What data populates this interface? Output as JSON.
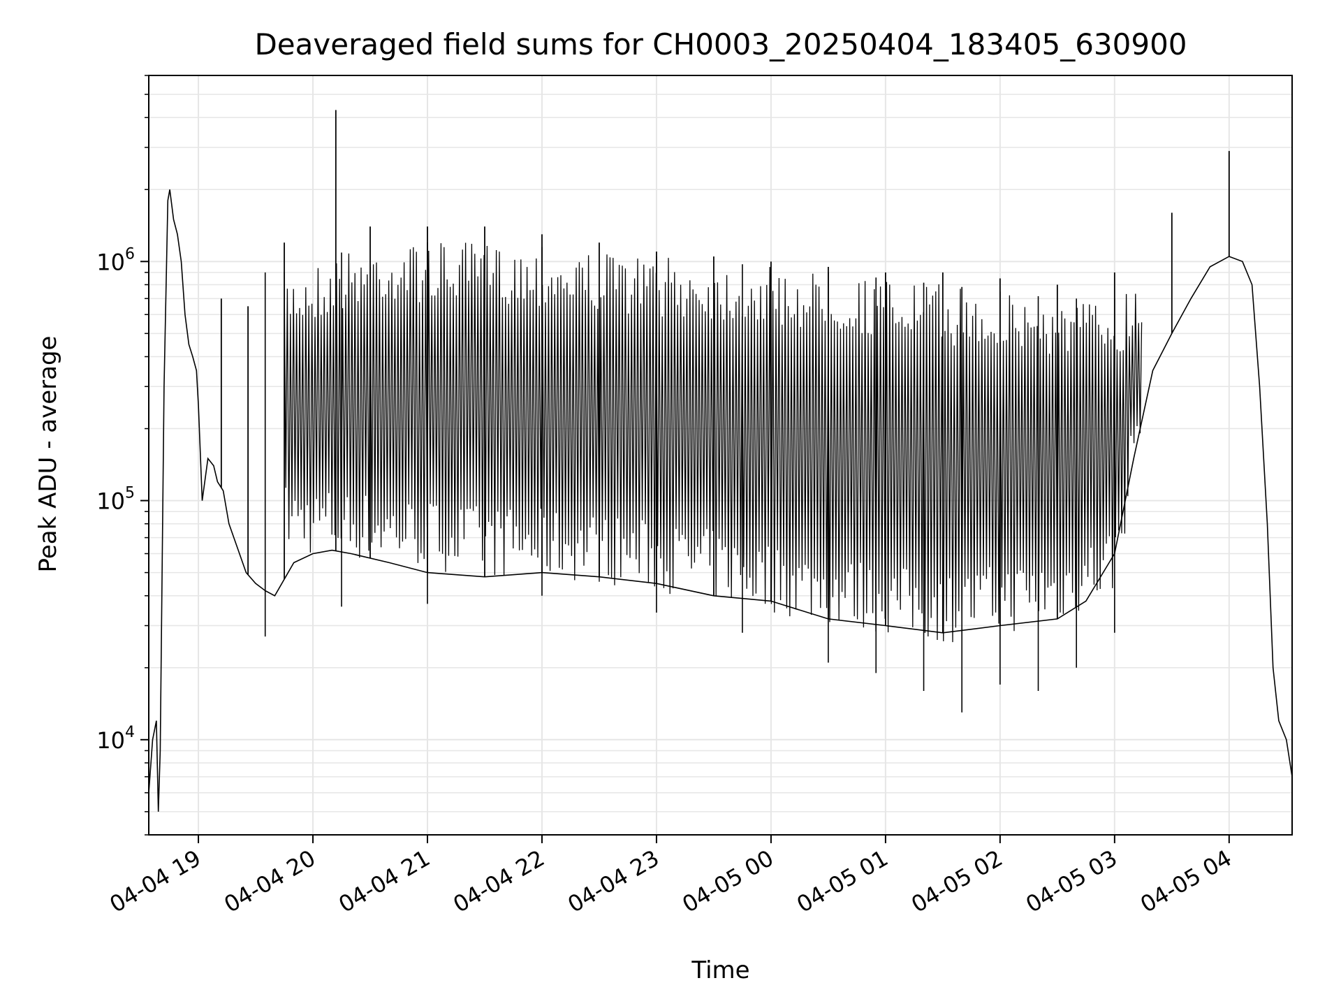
{
  "chart_data": {
    "type": "line",
    "title": "Deaveraged field sums for CH0003_20250404_183405_630900",
    "xlabel": "Time",
    "ylabel": "Peak ADU - average",
    "y_scale": "log",
    "ylim": [
      4000,
      6000000
    ],
    "xlim": [
      "04-04 18:34",
      "04-05 04:33"
    ],
    "grid": true,
    "line_color": "#000000",
    "grid_color": "#e6e6e6",
    "x_ticks": [
      {
        "label": "04-04 19",
        "time": "04-04 19:00"
      },
      {
        "label": "04-04 20",
        "time": "04-04 20:00"
      },
      {
        "label": "04-04 21",
        "time": "04-04 21:00"
      },
      {
        "label": "04-04 22",
        "time": "04-04 22:00"
      },
      {
        "label": "04-04 23",
        "time": "04-04 23:00"
      },
      {
        "label": "04-05 00",
        "time": "04-05 00:00"
      },
      {
        "label": "04-05 01",
        "time": "04-05 01:00"
      },
      {
        "label": "04-05 02",
        "time": "04-05 02:00"
      },
      {
        "label": "04-05 03",
        "time": "04-05 03:00"
      },
      {
        "label": "04-05 04",
        "time": "04-05 04:00"
      }
    ],
    "y_ticks": [
      {
        "base": "10",
        "exp": "4",
        "value": 10000
      },
      {
        "base": "10",
        "exp": "5",
        "value": 100000
      },
      {
        "base": "10",
        "exp": "6",
        "value": 1000000
      }
    ],
    "series": [
      {
        "points": [
          [
            "04-04 18:34",
            6000
          ],
          [
            "04-04 18:36",
            10000
          ],
          [
            "04-04 18:38",
            12000
          ],
          [
            "04-04 18:39",
            5000
          ],
          [
            "04-04 18:40",
            9000
          ],
          [
            "04-04 18:42",
            300000
          ],
          [
            "04-04 18:44",
            1800000
          ],
          [
            "04-04 18:45",
            2000000
          ],
          [
            "04-04 18:47",
            1500000
          ],
          [
            "04-04 18:49",
            1300000
          ],
          [
            "04-04 18:51",
            1000000
          ],
          [
            "04-04 18:53",
            600000
          ],
          [
            "04-04 18:55",
            450000
          ],
          [
            "04-04 18:57",
            400000
          ],
          [
            "04-04 18:59",
            350000
          ],
          [
            "04-04 19:00",
            250000
          ],
          [
            "04-04 19:02",
            100000
          ],
          [
            "04-04 19:05",
            150000
          ],
          [
            "04-04 19:08",
            140000
          ],
          [
            "04-04 19:10",
            120000
          ],
          [
            "04-04 19:13",
            110000
          ],
          [
            "04-04 19:16",
            80000
          ],
          [
            "04-04 19:20",
            65000
          ],
          [
            "04-04 19:25",
            50000
          ],
          [
            "04-04 19:30",
            45000
          ],
          [
            "04-04 19:35",
            42000
          ],
          [
            "04-04 19:40",
            40000
          ],
          [
            "04-04 19:50",
            55000
          ],
          [
            "04-04 20:00",
            60000
          ],
          [
            "04-04 20:10",
            62000
          ],
          [
            "04-04 20:20",
            60000
          ],
          [
            "04-04 20:40",
            55000
          ],
          [
            "04-04 21:00",
            50000
          ],
          [
            "04-04 21:30",
            48000
          ],
          [
            "04-04 22:00",
            50000
          ],
          [
            "04-04 22:30",
            48000
          ],
          [
            "04-04 23:00",
            45000
          ],
          [
            "04-04 23:30",
            40000
          ],
          [
            "04-05 00:00",
            38000
          ],
          [
            "04-05 00:30",
            32000
          ],
          [
            "04-05 01:00",
            30000
          ],
          [
            "04-05 01:30",
            28000
          ],
          [
            "04-05 02:00",
            30000
          ],
          [
            "04-05 02:30",
            32000
          ],
          [
            "04-05 02:45",
            38000
          ],
          [
            "04-05 03:00",
            60000
          ],
          [
            "04-05 03:10",
            150000
          ],
          [
            "04-05 03:20",
            350000
          ],
          [
            "04-05 03:30",
            500000
          ],
          [
            "04-05 03:40",
            700000
          ],
          [
            "04-05 03:50",
            950000
          ],
          [
            "04-05 04:00",
            1050000
          ],
          [
            "04-05 04:07",
            1000000
          ],
          [
            "04-05 04:12",
            800000
          ],
          [
            "04-05 04:16",
            300000
          ],
          [
            "04-05 04:20",
            80000
          ],
          [
            "04-05 04:23",
            20000
          ],
          [
            "04-05 04:26",
            12000
          ],
          [
            "04-05 04:30",
            10000
          ],
          [
            "04-05 04:33",
            7000
          ]
        ]
      }
    ],
    "spikes": [
      [
        "04-04 19:12",
        700000
      ],
      [
        "04-04 19:26",
        650000
      ],
      [
        "04-04 19:45",
        1200000
      ],
      [
        "04-04 20:12",
        4300000
      ],
      [
        "04-04 20:30",
        1400000
      ],
      [
        "04-04 21:00",
        1400000
      ],
      [
        "04-04 21:30",
        1400000
      ],
      [
        "04-04 22:00",
        1300000
      ],
      [
        "04-04 22:30",
        1200000
      ],
      [
        "04-04 23:00",
        1100000
      ],
      [
        "04-04 23:30",
        1050000
      ],
      [
        "04-05 00:00",
        1000000
      ],
      [
        "04-05 00:30",
        950000
      ],
      [
        "04-05 01:00",
        900000
      ],
      [
        "04-05 01:30",
        900000
      ],
      [
        "04-05 02:00",
        850000
      ],
      [
        "04-05 02:30",
        800000
      ],
      [
        "04-05 03:00",
        900000
      ],
      [
        "04-05 03:30",
        1600000
      ],
      [
        "04-05 04:00",
        2900000
      ]
    ],
    "dips": [
      [
        "04-04 19:35",
        27000
      ],
      [
        "04-04 20:15",
        36000
      ],
      [
        "04-04 21:00",
        37000
      ],
      [
        "04-04 22:00",
        40000
      ],
      [
        "04-04 23:00",
        34000
      ],
      [
        "04-04 23:45",
        28000
      ],
      [
        "04-05 00:30",
        21000
      ],
      [
        "04-05 00:55",
        19000
      ],
      [
        "04-05 01:20",
        16000
      ],
      [
        "04-05 01:40",
        13000
      ],
      [
        "04-05 02:00",
        17000
      ],
      [
        "04-05 02:20",
        16000
      ],
      [
        "04-05 02:40",
        20000
      ],
      [
        "04-05 03:00",
        28000
      ]
    ],
    "band": {
      "lower": [
        [
          "04-04 19:45",
          60000
        ],
        [
          "04-04 20:30",
          55000
        ],
        [
          "04-04 21:30",
          48000
        ],
        [
          "04-04 22:30",
          45000
        ],
        [
          "04-04 23:30",
          38000
        ],
        [
          "04-05 00:30",
          30000
        ],
        [
          "04-05 01:30",
          25000
        ],
        [
          "04-05 02:30",
          30000
        ],
        [
          "04-05 03:00",
          40000
        ],
        [
          "04-05 03:15",
          200000
        ]
      ],
      "upper": [
        [
          "04-04 19:45",
          900000
        ],
        [
          "04-04 20:30",
          1200000
        ],
        [
          "04-04 21:30",
          1200000
        ],
        [
          "04-04 22:30",
          1100000
        ],
        [
          "04-04 23:30",
          1000000
        ],
        [
          "04-05 00:30",
          900000
        ],
        [
          "04-05 01:30",
          800000
        ],
        [
          "04-05 02:30",
          700000
        ],
        [
          "04-05 03:00",
          700000
        ],
        [
          "04-05 03:15",
          900000
        ]
      ]
    }
  }
}
